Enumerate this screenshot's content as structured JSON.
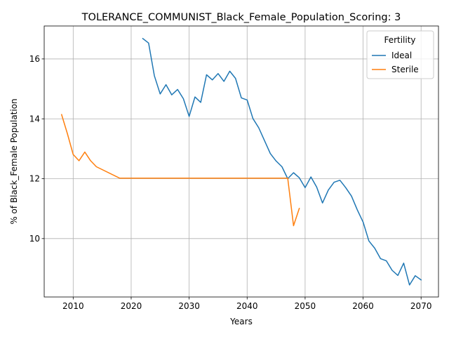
{
  "chart_data": {
    "type": "line",
    "title": "TOLERANCE_COMMUNIST_Black_Female_Population_Scoring: 3",
    "xlabel": "Years",
    "ylabel": "% of Black_Female Population",
    "xlim": [
      2005,
      2073
    ],
    "ylim": [
      8.05,
      17.1
    ],
    "x_ticks": [
      2010,
      2020,
      2030,
      2040,
      2050,
      2060,
      2070
    ],
    "y_ticks": [
      10,
      12,
      14,
      16
    ],
    "grid": true,
    "legend": {
      "title": "Fertility",
      "placement": "top-right"
    },
    "series": [
      {
        "name": "Ideal",
        "color": "#1f77b4",
        "x": [
          2022,
          2023,
          2024,
          2025,
          2026,
          2027,
          2028,
          2029,
          2030,
          2031,
          2032,
          2033,
          2034,
          2035,
          2036,
          2037,
          2038,
          2039,
          2040,
          2041,
          2042,
          2043,
          2044,
          2045,
          2046,
          2047,
          2048,
          2049,
          2050,
          2051,
          2052,
          2053,
          2054,
          2055,
          2056,
          2057,
          2058,
          2059,
          2060,
          2061,
          2062,
          2063,
          2064,
          2065,
          2066,
          2067,
          2068,
          2069,
          2070
        ],
        "y": [
          16.68,
          16.53,
          15.44,
          14.83,
          15.14,
          14.8,
          14.98,
          14.67,
          14.08,
          14.73,
          14.55,
          15.47,
          15.3,
          15.51,
          15.25,
          15.59,
          15.35,
          14.7,
          14.63,
          14.01,
          13.7,
          13.27,
          12.84,
          12.59,
          12.4,
          12.0,
          12.2,
          12.03,
          11.7,
          12.06,
          11.72,
          11.19,
          11.62,
          11.88,
          11.95,
          11.7,
          11.42,
          10.96,
          10.55,
          9.92,
          9.68,
          9.33,
          9.26,
          8.94,
          8.77,
          9.18,
          8.45,
          8.76,
          8.62
        ]
      },
      {
        "name": "Sterile",
        "color": "#ff7f0e",
        "x": [
          2008,
          2009,
          2010,
          2011,
          2012,
          2013,
          2014,
          2018,
          2047,
          2048,
          2049
        ],
        "y": [
          14.14,
          13.5,
          12.81,
          12.6,
          12.89,
          12.6,
          12.4,
          12.02,
          12.02,
          10.43,
          11.01
        ]
      }
    ]
  }
}
